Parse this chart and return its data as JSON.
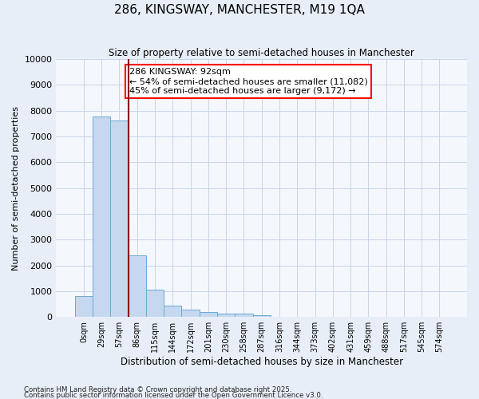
{
  "title": "286, KINGSWAY, MANCHESTER, M19 1QA",
  "subtitle": "Size of property relative to semi-detached houses in Manchester",
  "xlabel": "Distribution of semi-detached houses by size in Manchester",
  "ylabel": "Number of semi-detached properties",
  "bar_labels": [
    "0sqm",
    "29sqm",
    "57sqm",
    "86sqm",
    "115sqm",
    "144sqm",
    "172sqm",
    "201sqm",
    "230sqm",
    "258sqm",
    "287sqm",
    "316sqm",
    "344sqm",
    "373sqm",
    "402sqm",
    "431sqm",
    "459sqm",
    "488sqm",
    "517sqm",
    "545sqm",
    "574sqm"
  ],
  "bar_values": [
    820,
    7780,
    7620,
    2380,
    1050,
    450,
    290,
    185,
    130,
    120,
    60,
    0,
    0,
    0,
    0,
    0,
    0,
    0,
    0,
    0,
    0
  ],
  "bar_color": "#c5d8ef",
  "bar_edge_color": "#6aaad4",
  "vline_x_idx": 3,
  "vline_color": "#8b0000",
  "vline_label_title": "286 KINGSWAY: 92sqm",
  "vline_label_smaller": "← 54% of semi-detached houses are smaller (11,082)",
  "vline_label_larger": "45% of semi-detached houses are larger (9,172) →",
  "ylim": [
    0,
    10000
  ],
  "yticks": [
    0,
    1000,
    2000,
    3000,
    4000,
    5000,
    6000,
    7000,
    8000,
    9000,
    10000
  ],
  "footnote1": "Contains HM Land Registry data © Crown copyright and database right 2025.",
  "footnote2": "Contains public sector information licensed under the Open Government Licence v3.0.",
  "bg_color": "#e8eef8",
  "plot_bg_color": "#f4f7fc",
  "grid_color": "#c8d4e8",
  "title_fontsize": 11,
  "subtitle_fontsize": 8.5,
  "ylabel_fontsize": 8,
  "xlabel_fontsize": 8.5,
  "tick_fontsize": 8,
  "annot_fontsize": 8
}
